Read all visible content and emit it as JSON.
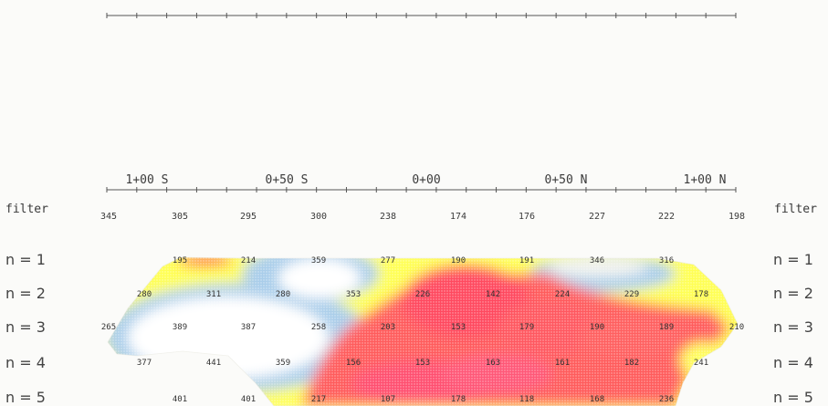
{
  "filter_label": "filter",
  "station_labels": [
    "1+00 S",
    "0+50 S",
    "0+00",
    "0+50 N",
    "1+00 N"
  ],
  "row_labels": [
    "n = 1",
    "n = 2",
    "n = 3",
    "n = 4",
    "n = 5"
  ],
  "filter_values": [
    "345",
    "305",
    "295",
    "300",
    "238",
    "174",
    "176",
    "227",
    "222",
    "198"
  ],
  "rows": [
    [
      "195",
      "214",
      "359",
      "277",
      "190",
      "191",
      "346",
      "316"
    ],
    [
      "280",
      "311",
      "280",
      "353",
      "226",
      "142",
      "224",
      "229",
      "178"
    ],
    [
      "265",
      "389",
      "387",
      "258",
      "203",
      "153",
      "179",
      "190",
      "189",
      "210"
    ],
    [
      "377",
      "441",
      "359",
      "156",
      "153",
      "163",
      "161",
      "182",
      "241"
    ],
    [
      "401",
      "401",
      "217",
      "107",
      "178",
      "118",
      "168",
      "236"
    ]
  ]
}
